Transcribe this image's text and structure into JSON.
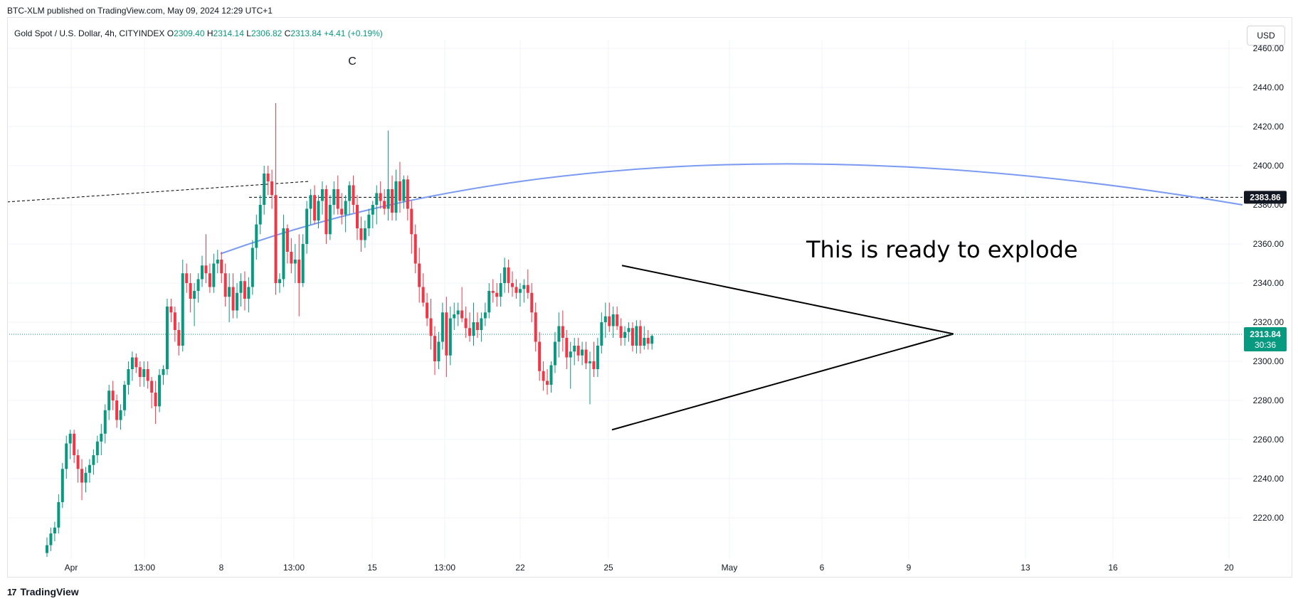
{
  "publisher_line": "BTC-XLM published on TradingView.com, May 09, 2024 12:29 UTC+1",
  "symbol": {
    "title": "Gold Spot / U.S. Dollar, 4h, CITYINDEX",
    "open_label": "O",
    "open": "2309.40",
    "high_label": "H",
    "high": "2314.14",
    "low_label": "L",
    "low": "2306.82",
    "close_label": "C",
    "close": "2313.84",
    "change": "+4.41 (+0.19%)"
  },
  "currency_button": "USD",
  "branding": "TradingView",
  "colors": {
    "up": "#089981",
    "down": "#f23645",
    "curve": "#7b9bf2",
    "trendline": "#000000",
    "grid": "#f0f3fa"
  },
  "chart_data": {
    "type": "candlestick",
    "timeframe": "4h",
    "ylim": [
      2200,
      2460
    ],
    "y_ticks": [
      "2220.00",
      "2240.00",
      "2260.00",
      "2280.00",
      "2300.00",
      "2320.00",
      "2340.00",
      "2360.00",
      "2380.00",
      "2400.00",
      "2420.00",
      "2440.00",
      "2460.00"
    ],
    "x_ticks": [
      "Apr",
      "13:00",
      "8",
      "13:00",
      "15",
      "13:00",
      "22",
      "25",
      "May",
      "6",
      "9",
      "13",
      "16",
      "20"
    ],
    "price_labels": [
      {
        "name": "level",
        "value": "2383.86"
      },
      {
        "name": "last",
        "value": "2313.84",
        "countdown": "30:36"
      }
    ],
    "annotations": [
      {
        "text": "C",
        "kind": "wave-label"
      },
      {
        "text": "This is ready to explode",
        "kind": "note"
      }
    ],
    "drawings": [
      "dashed horizontal level 2383.86",
      "dashed sloped line",
      "arc curve",
      "symmetrical triangle"
    ],
    "candles": [
      [
        2202,
        2210,
        2200,
        2206
      ],
      [
        2206,
        2215,
        2203,
        2212
      ],
      [
        2212,
        2218,
        2208,
        2215
      ],
      [
        2215,
        2232,
        2212,
        2228
      ],
      [
        2228,
        2248,
        2225,
        2245
      ],
      [
        2245,
        2262,
        2240,
        2258
      ],
      [
        2258,
        2265,
        2250,
        2263
      ],
      [
        2263,
        2265,
        2248,
        2252
      ],
      [
        2252,
        2255,
        2238,
        2245
      ],
      [
        2245,
        2250,
        2229,
        2238
      ],
      [
        2238,
        2246,
        2233,
        2243
      ],
      [
        2243,
        2250,
        2238,
        2247
      ],
      [
        2247,
        2255,
        2242,
        2252
      ],
      [
        2252,
        2262,
        2248,
        2259
      ],
      [
        2259,
        2268,
        2252,
        2263
      ],
      [
        2263,
        2278,
        2258,
        2275
      ],
      [
        2275,
        2288,
        2270,
        2285
      ],
      [
        2285,
        2290,
        2275,
        2280
      ],
      [
        2280,
        2283,
        2266,
        2270
      ],
      [
        2270,
        2278,
        2265,
        2275
      ],
      [
        2275,
        2290,
        2272,
        2288
      ],
      [
        2288,
        2300,
        2283,
        2296
      ],
      [
        2296,
        2305,
        2290,
        2302
      ],
      [
        2302,
        2304,
        2294,
        2297
      ],
      [
        2297,
        2300,
        2287,
        2292
      ],
      [
        2292,
        2300,
        2287,
        2296
      ],
      [
        2296,
        2300,
        2286,
        2290
      ],
      [
        2290,
        2292,
        2276,
        2284
      ],
      [
        2284,
        2290,
        2268,
        2277
      ],
      [
        2277,
        2296,
        2274,
        2293
      ],
      [
        2293,
        2298,
        2288,
        2296
      ],
      [
        2296,
        2332,
        2293,
        2328
      ],
      [
        2328,
        2332,
        2320,
        2325
      ],
      [
        2325,
        2328,
        2310,
        2316
      ],
      [
        2316,
        2320,
        2303,
        2308
      ],
      [
        2308,
        2352,
        2305,
        2345
      ],
      [
        2345,
        2350,
        2335,
        2340
      ],
      [
        2340,
        2345,
        2325,
        2332
      ],
      [
        2332,
        2340,
        2318,
        2336
      ],
      [
        2336,
        2345,
        2330,
        2342
      ],
      [
        2342,
        2354,
        2338,
        2349
      ],
      [
        2349,
        2365,
        2340,
        2345
      ],
      [
        2345,
        2350,
        2335,
        2338
      ],
      [
        2338,
        2355,
        2335,
        2350
      ],
      [
        2350,
        2357,
        2345,
        2352
      ],
      [
        2352,
        2356,
        2340,
        2345
      ],
      [
        2345,
        2350,
        2328,
        2333
      ],
      [
        2333,
        2345,
        2320,
        2338
      ],
      [
        2338,
        2345,
        2322,
        2326
      ],
      [
        2326,
        2340,
        2322,
        2335
      ],
      [
        2335,
        2345,
        2328,
        2341
      ],
      [
        2341,
        2346,
        2326,
        2332
      ],
      [
        2332,
        2343,
        2325,
        2338
      ],
      [
        2338,
        2362,
        2334,
        2358
      ],
      [
        2358,
        2375,
        2352,
        2370
      ],
      [
        2370,
        2385,
        2365,
        2380
      ],
      [
        2380,
        2400,
        2375,
        2396
      ],
      [
        2396,
        2400,
        2385,
        2392
      ],
      [
        2392,
        2398,
        2378,
        2385
      ],
      [
        2385,
        2432,
        2334,
        2340
      ],
      [
        2340,
        2345,
        2335,
        2342
      ],
      [
        2342,
        2375,
        2338,
        2368
      ],
      [
        2368,
        2370,
        2350,
        2356
      ],
      [
        2356,
        2363,
        2345,
        2350
      ],
      [
        2350,
        2360,
        2340,
        2352
      ],
      [
        2352,
        2365,
        2323,
        2340
      ],
      [
        2340,
        2365,
        2338,
        2360
      ],
      [
        2360,
        2382,
        2355,
        2378
      ],
      [
        2378,
        2388,
        2370,
        2385
      ],
      [
        2385,
        2390,
        2370,
        2372
      ],
      [
        2372,
        2385,
        2368,
        2382
      ],
      [
        2382,
        2392,
        2375,
        2388
      ],
      [
        2388,
        2390,
        2360,
        2365
      ],
      [
        2365,
        2385,
        2362,
        2380
      ],
      [
        2380,
        2392,
        2375,
        2388
      ],
      [
        2388,
        2395,
        2375,
        2378
      ],
      [
        2378,
        2386,
        2370,
        2375
      ],
      [
        2375,
        2385,
        2366,
        2382
      ],
      [
        2382,
        2392,
        2375,
        2390
      ],
      [
        2390,
        2395,
        2376,
        2380
      ],
      [
        2380,
        2385,
        2362,
        2368
      ],
      [
        2368,
        2374,
        2356,
        2362
      ],
      [
        2362,
        2372,
        2358,
        2368
      ],
      [
        2368,
        2378,
        2364,
        2375
      ],
      [
        2375,
        2382,
        2368,
        2380
      ],
      [
        2380,
        2390,
        2370,
        2386
      ],
      [
        2386,
        2392,
        2378,
        2382
      ],
      [
        2382,
        2388,
        2375,
        2378
      ],
      [
        2378,
        2418,
        2372,
        2388
      ],
      [
        2388,
        2395,
        2372,
        2376
      ],
      [
        2376,
        2398,
        2372,
        2392
      ],
      [
        2392,
        2402,
        2376,
        2382
      ],
      [
        2382,
        2395,
        2378,
        2393
      ],
      [
        2393,
        2395,
        2372,
        2378
      ],
      [
        2378,
        2382,
        2355,
        2365
      ],
      [
        2365,
        2370,
        2345,
        2350
      ],
      [
        2350,
        2358,
        2330,
        2338
      ],
      [
        2338,
        2345,
        2328,
        2330
      ],
      [
        2330,
        2335,
        2318,
        2322
      ],
      [
        2322,
        2332,
        2306,
        2313
      ],
      [
        2313,
        2318,
        2293,
        2300
      ],
      [
        2300,
        2315,
        2296,
        2310
      ],
      [
        2310,
        2330,
        2306,
        2325
      ],
      [
        2325,
        2333,
        2292,
        2303
      ],
      [
        2303,
        2328,
        2298,
        2322
      ],
      [
        2322,
        2330,
        2316,
        2324
      ],
      [
        2324,
        2330,
        2318,
        2326
      ],
      [
        2326,
        2338,
        2320,
        2322
      ],
      [
        2322,
        2328,
        2312,
        2317
      ],
      [
        2317,
        2325,
        2310,
        2313
      ],
      [
        2313,
        2330,
        2308,
        2320
      ],
      [
        2320,
        2325,
        2312,
        2316
      ],
      [
        2316,
        2325,
        2310,
        2322
      ],
      [
        2322,
        2330,
        2318,
        2325
      ],
      [
        2325,
        2340,
        2322,
        2336
      ],
      [
        2336,
        2342,
        2330,
        2335
      ],
      [
        2335,
        2340,
        2328,
        2333
      ],
      [
        2333,
        2345,
        2328,
        2340
      ],
      [
        2340,
        2353,
        2335,
        2348
      ],
      [
        2348,
        2352,
        2335,
        2340
      ],
      [
        2340,
        2346,
        2333,
        2338
      ],
      [
        2338,
        2342,
        2332,
        2335
      ],
      [
        2335,
        2340,
        2328,
        2337
      ],
      [
        2337,
        2342,
        2330,
        2339
      ],
      [
        2339,
        2347,
        2332,
        2335
      ],
      [
        2335,
        2340,
        2320,
        2325
      ],
      [
        2325,
        2330,
        2305,
        2310
      ],
      [
        2310,
        2315,
        2290,
        2295
      ],
      [
        2295,
        2300,
        2285,
        2290
      ],
      [
        2290,
        2296,
        2283,
        2288
      ],
      [
        2288,
        2300,
        2284,
        2298
      ],
      [
        2298,
        2315,
        2294,
        2310
      ],
      [
        2310,
        2325,
        2302,
        2318
      ],
      [
        2318,
        2326,
        2305,
        2312
      ],
      [
        2312,
        2316,
        2296,
        2302
      ],
      [
        2302,
        2310,
        2286,
        2305
      ],
      [
        2305,
        2312,
        2298,
        2308
      ],
      [
        2308,
        2312,
        2300,
        2303
      ],
      [
        2303,
        2310,
        2298,
        2306
      ],
      [
        2306,
        2310,
        2296,
        2299
      ],
      [
        2299,
        2305,
        2278,
        2300
      ],
      [
        2300,
        2310,
        2292,
        2296
      ],
      [
        2296,
        2312,
        2292,
        2308
      ],
      [
        2308,
        2325,
        2304,
        2320
      ],
      [
        2320,
        2330,
        2312,
        2323
      ],
      [
        2323,
        2330,
        2315,
        2318
      ],
      [
        2318,
        2328,
        2312,
        2324
      ],
      [
        2324,
        2328,
        2316,
        2318
      ],
      [
        2318,
        2322,
        2308,
        2312
      ],
      [
        2312,
        2318,
        2308,
        2315
      ],
      [
        2315,
        2320,
        2310,
        2317
      ],
      [
        2317,
        2320,
        2305,
        2308
      ],
      [
        2308,
        2321,
        2304,
        2318
      ],
      [
        2318,
        2321,
        2304,
        2308
      ],
      [
        2308,
        2318,
        2306,
        2312
      ],
      [
        2312,
        2316,
        2306,
        2309
      ],
      [
        2309,
        2314,
        2306,
        2313
      ]
    ]
  }
}
